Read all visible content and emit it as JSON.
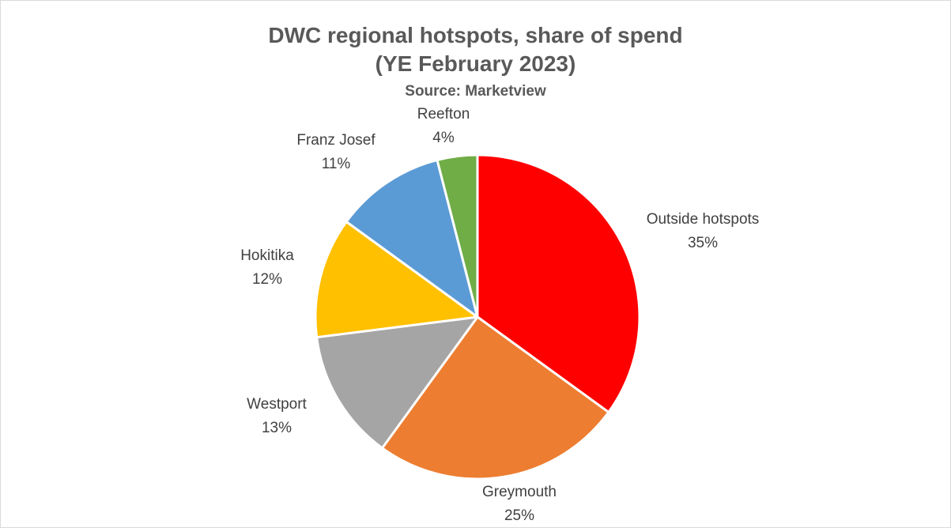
{
  "chart_data": {
    "type": "pie",
    "title": "DWC regional hotspots, share of spend",
    "title_line2": "(YE February 2023)",
    "subtitle": "Source: Marketview",
    "slices": [
      {
        "name": "Outside hotspots",
        "value": 35,
        "label": "35%",
        "color": "#ff0000"
      },
      {
        "name": "Greymouth",
        "value": 25,
        "label": "25%",
        "color": "#ed7d31"
      },
      {
        "name": "Westport",
        "value": 13,
        "label": "13%",
        "color": "#a5a5a5"
      },
      {
        "name": "Hokitika",
        "value": 12,
        "label": "12%",
        "color": "#ffc000"
      },
      {
        "name": "Franz Josef",
        "value": 11,
        "label": "11%",
        "color": "#5b9bd5"
      },
      {
        "name": "Reefton",
        "value": 4,
        "label": "4%",
        "color": "#70ad47"
      }
    ],
    "legend": "none",
    "data_labels": "outside"
  }
}
